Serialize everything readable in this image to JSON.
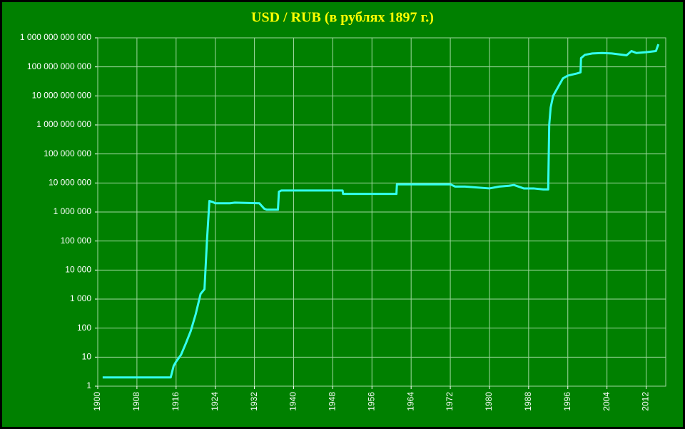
{
  "chart_data": {
    "type": "line",
    "title": "USD / RUB (в рублях 1897 г.)",
    "color": "#33ffee",
    "log_y": true,
    "grid": true,
    "xlim": [
      1900,
      2016
    ],
    "xticks": [
      1900,
      1908,
      1916,
      1924,
      1932,
      1940,
      1948,
      1956,
      1964,
      1972,
      1980,
      1988,
      1996,
      2004,
      2012
    ],
    "ylim": [
      1,
      1000000000000
    ],
    "yticks": [
      1,
      10,
      100,
      {
        "value": 1000,
        "label": "1 000"
      },
      {
        "value": 10000,
        "label": "10 000"
      },
      {
        "value": 100000,
        "label": "100 000"
      },
      {
        "value": 1000000,
        "label": "1 000 000"
      },
      {
        "value": 10000000,
        "label": "10 000 000"
      },
      {
        "value": 100000000,
        "label": "100 000 000"
      },
      {
        "value": 1000000000,
        "label": "1 000 000 000"
      },
      {
        "value": 10000000000,
        "label": "10 000 000 000"
      },
      {
        "value": 100000000000,
        "label": "100 000 000 000"
      },
      {
        "value": 1000000000000,
        "label": "1 000 000 000 000"
      }
    ],
    "x": [
      1901,
      1914.9,
      1915.5,
      1916,
      1917,
      1918,
      1919,
      1920,
      1921,
      1921.8,
      1922.3,
      1922.8,
      1923.5,
      1924,
      1927,
      1928,
      1933,
      1934,
      1934.5,
      1936.8,
      1937,
      1937.5,
      1950,
      1950.1,
      1961,
      1961.1,
      1972,
      1973,
      1975,
      1980,
      1982,
      1984,
      1985,
      1987,
      1989,
      1991,
      1992,
      1992.2,
      1992.5,
      1993,
      1994,
      1995,
      1996,
      1998,
      1998.6,
      1998.7,
      1999.5,
      2001,
      2003,
      2005,
      2008,
      2009,
      2010,
      2012,
      2014,
      2014.5
    ],
    "values": [
      2,
      2,
      5,
      7,
      12,
      30,
      80,
      300,
      1500,
      2200,
      100000,
      2400000,
      2200000,
      2000000,
      2000000,
      2100000,
      2000000,
      1300000,
      1200000,
      1200000,
      5000000,
      5500000,
      5500000,
      4200000,
      4200000,
      9000000,
      9000000,
      7500000,
      7500000,
      6500000,
      7500000,
      8000000,
      8500000,
      6500000,
      6500000,
      6000000,
      6000000,
      1000000000,
      4000000000,
      10000000000,
      20000000000,
      40000000000,
      50000000000,
      60000000000,
      65000000000,
      200000000000,
      260000000000,
      290000000000,
      300000000000,
      290000000000,
      250000000000,
      350000000000,
      300000000000,
      320000000000,
      350000000000,
      600000000000
    ]
  }
}
